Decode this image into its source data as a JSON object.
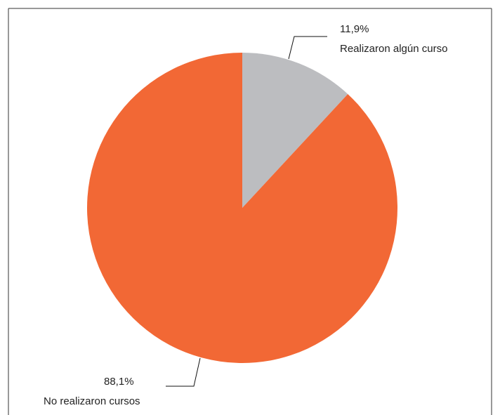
{
  "chart_data": {
    "type": "pie",
    "title": "",
    "slices": [
      {
        "label": "Realizaron algún curso",
        "value": 11.9,
        "value_label": "11,9%",
        "color": "#bcbdc0"
      },
      {
        "label": "No realizaron cursos",
        "value": 88.1,
        "value_label": "88,1%",
        "color": "#f26835"
      }
    ],
    "start_angle_deg": 0,
    "direction": "clockwise",
    "legend": "none"
  },
  "colors": {
    "frame_border": "#333333",
    "background": "#ffffff",
    "text": "#222222"
  }
}
